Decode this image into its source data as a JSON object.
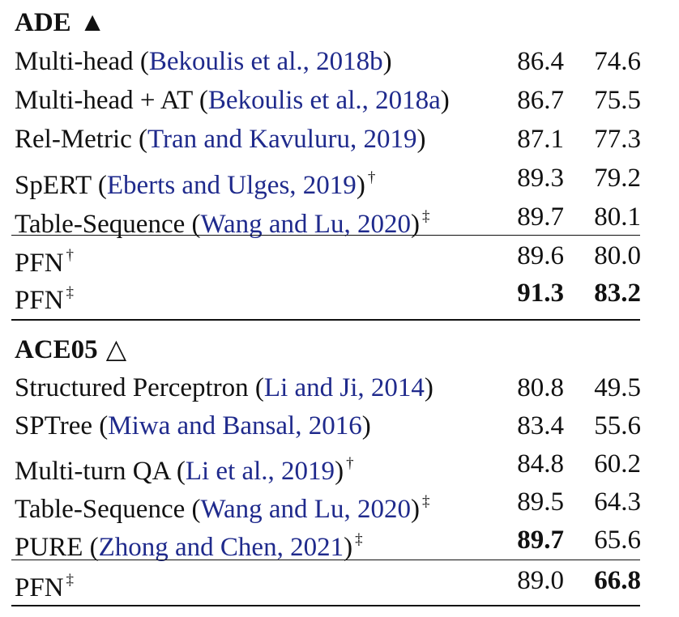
{
  "sections": [
    {
      "title": "ADE",
      "symbol": "▲",
      "rows": [
        {
          "model": "Multi-head",
          "cite_open": " (",
          "cite": "Bekoulis et al., 2018b",
          "cite_close": ")",
          "dagger": "",
          "v1": "86.4",
          "v2": "74.6"
        },
        {
          "model": "Multi-head + AT",
          "cite_open": " (",
          "cite": "Bekoulis et al., 2018a",
          "cite_close": ")",
          "dagger": "",
          "v1": "86.7",
          "v2": "75.5"
        },
        {
          "model": "Rel-Metric",
          "cite_open": " (",
          "cite": "Tran and Kavuluru, 2019",
          "cite_close": ")",
          "dagger": "",
          "v1": "87.1",
          "v2": "77.3"
        },
        {
          "model": "SpERT",
          "cite_open": " (",
          "cite": "Eberts and Ulges, 2019",
          "cite_close": ")",
          "dagger": "†",
          "v1": "89.3",
          "v2": "79.2"
        },
        {
          "model": "Table-Sequence",
          "cite_open": " (",
          "cite": "Wang and Lu, 2020",
          "cite_close": ")",
          "dagger": "‡",
          "v1": "89.7",
          "v2": "80.1"
        }
      ],
      "ours": [
        {
          "model": "PFN",
          "dagger": "†",
          "v1": "89.6",
          "v2": "80.0"
        },
        {
          "model": "PFN",
          "dagger": "‡",
          "v1": "91.3",
          "v2": "83.2"
        }
      ]
    },
    {
      "title": "ACE05",
      "symbol": "△",
      "rows": [
        {
          "model": "Structured Perceptron",
          "cite_open": " (",
          "cite": "Li and Ji, 2014",
          "cite_close": ")",
          "dagger": "",
          "v1": "80.8",
          "v2": "49.5"
        },
        {
          "model": "SPTree",
          "cite_open": " (",
          "cite": "Miwa and Bansal, 2016",
          "cite_close": ")",
          "dagger": "",
          "v1": "83.4",
          "v2": "55.6"
        },
        {
          "model": "Multi-turn QA",
          "cite_open": " (",
          "cite": "Li et al., 2019",
          "cite_close": ")",
          "dagger": "†",
          "v1": "84.8",
          "v2": "60.2"
        },
        {
          "model": "Table-Sequence",
          "cite_open": " (",
          "cite": "Wang and Lu, 2020",
          "cite_close": ")",
          "dagger": "‡",
          "v1": "89.5",
          "v2": "64.3"
        },
        {
          "model": "PURE",
          "cite_open": " (",
          "cite": "Zhong and Chen, 2021",
          "cite_close": ")",
          "dagger": "‡",
          "v1": "89.7",
          "v2": "65.6"
        }
      ],
      "ours": [
        {
          "model": "PFN",
          "dagger": "‡",
          "v1": "89.0",
          "v2": "66.8"
        }
      ]
    }
  ]
}
